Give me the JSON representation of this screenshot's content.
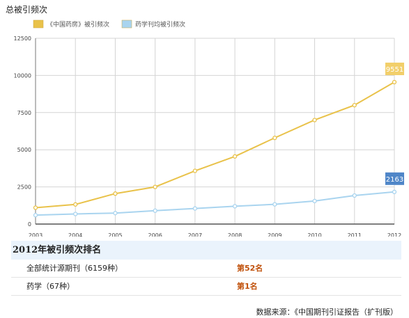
{
  "chart_title": "总被引频次",
  "chart_data": {
    "type": "line",
    "x": [
      "2003",
      "2004",
      "2005",
      "2006",
      "2007",
      "2008",
      "2009",
      "2010",
      "2011",
      "2012"
    ],
    "series": [
      {
        "name": "《中国药房》被引频次",
        "color": "#e9c24a",
        "values": [
          1100,
          1320,
          2050,
          2500,
          3580,
          4550,
          5800,
          7000,
          8000,
          9551
        ]
      },
      {
        "name": "药学刊均被引频次",
        "color": "#a9d4ef",
        "values": [
          600,
          680,
          740,
          900,
          1050,
          1200,
          1330,
          1550,
          1920,
          2163
        ]
      }
    ],
    "ylim": [
      0,
      12500
    ],
    "yticks": [
      "0",
      "2500",
      "5000",
      "7500",
      "10000",
      "12500"
    ],
    "end_labels": [
      {
        "text": "9551",
        "color": "#f2cf6a"
      },
      {
        "text": "2163",
        "color": "#4f86c8"
      }
    ],
    "grid": true,
    "legend": "top-left"
  },
  "ranking": {
    "title": "2012年被引频次排名",
    "rows": [
      {
        "name": "全部统计源期刊（6159种）",
        "value": "第52名"
      },
      {
        "name": "药学（67种）",
        "value": "第1名"
      }
    ]
  },
  "source": "数据来源：《中国期刊引证报告（扩刊版）"
}
